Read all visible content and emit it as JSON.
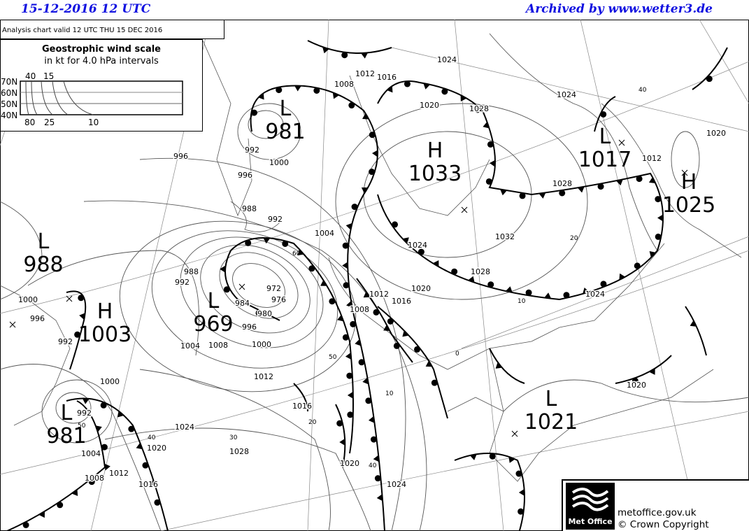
{
  "header": {
    "datetime": "15-12-2016   12 UTC",
    "archive": "Archived by www.wetter3.de",
    "header_color": "#1010e0"
  },
  "chart": {
    "valid": "Analysis chart  valid 12 UTC THU 15  DEC 2016"
  },
  "legend": {
    "title": "Geostrophic wind scale",
    "subtitle": "in kt for 4.0 hPa intervals",
    "lat_labels": [
      "70N",
      "60N",
      "50N",
      "40N"
    ],
    "top_labels": [
      "40",
      "15"
    ],
    "bottom_labels": [
      "80",
      "25",
      "10"
    ]
  },
  "pressure_systems": [
    {
      "type": "L",
      "value": "981"
    },
    {
      "type": "L",
      "value": "988"
    },
    {
      "type": "H",
      "value": "1003"
    },
    {
      "type": "L",
      "value": "969"
    },
    {
      "type": "L",
      "value": "981"
    },
    {
      "type": "H",
      "value": "1033"
    },
    {
      "type": "L",
      "value": "1017"
    },
    {
      "type": "H",
      "value": "1025"
    },
    {
      "type": "L",
      "value": "1021"
    }
  ],
  "isobar_labels": [
    "996",
    "992",
    "1000",
    "996",
    "988",
    "992",
    "1004",
    "988",
    "992",
    "984",
    "980",
    "976",
    "972",
    "996",
    "1000",
    "1004",
    "1008",
    "1012",
    "1016",
    "1020",
    "1024",
    "1028",
    "1024",
    "1020",
    "1016",
    "1012",
    "1008",
    "1004",
    "1000",
    "992",
    "992",
    "996",
    "1000",
    "1008",
    "1012",
    "1016",
    "1020",
    "1024",
    "1028",
    "1024",
    "1028",
    "1032",
    "1024",
    "1028",
    "1020",
    "1016",
    "1012",
    "1008",
    "1024",
    "1020",
    "1020",
    "1012"
  ],
  "wind_labels": [
    "40",
    "20",
    "10",
    "50",
    "10",
    "20",
    "30",
    "40",
    "50",
    "40",
    "60",
    "0"
  ],
  "footer": {
    "logo_text": "Met Office",
    "site": "metoffice.gov.uk",
    "copyright": "© Crown Copyright"
  }
}
